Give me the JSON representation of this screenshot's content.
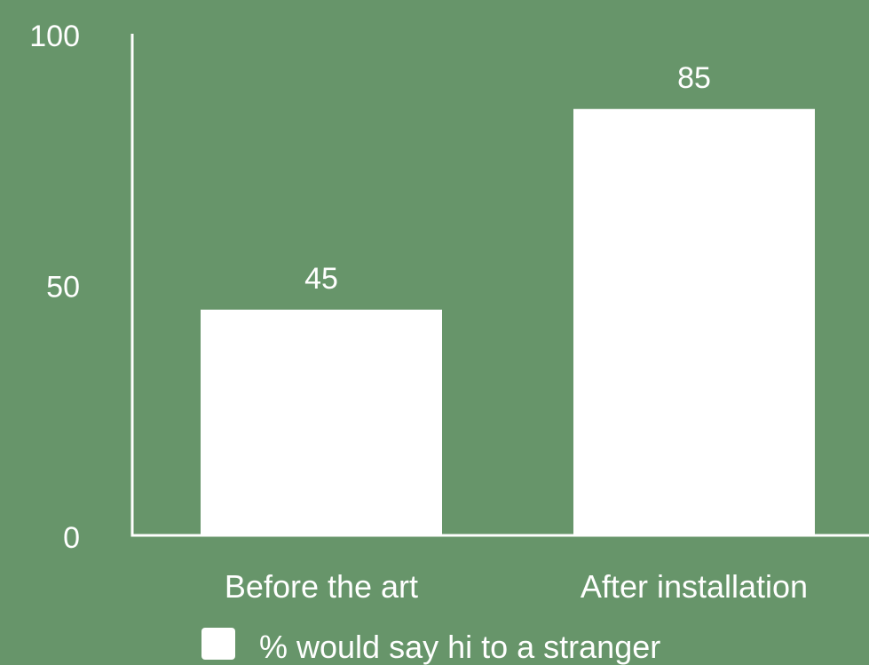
{
  "colors": {
    "background": "#67956A",
    "bar": "#FFFFFF",
    "axis": "#FFFFFF",
    "text": "#FFFFFF"
  },
  "chart_data": {
    "type": "bar",
    "title": "",
    "xlabel": "",
    "ylabel": "",
    "categories": [
      "Before the art",
      "After installation"
    ],
    "series": [
      {
        "name": "% would say hi to a stranger",
        "values": [
          45,
          85
        ],
        "data_labels": [
          "45",
          "85"
        ]
      }
    ],
    "ylim": [
      0,
      100
    ],
    "y_ticks": [
      0,
      50,
      100
    ],
    "y_tick_labels": [
      "0",
      "50",
      "100"
    ],
    "grid": false,
    "legend": {
      "position": "bottom-center",
      "label": "% would say hi to a stranger"
    }
  }
}
